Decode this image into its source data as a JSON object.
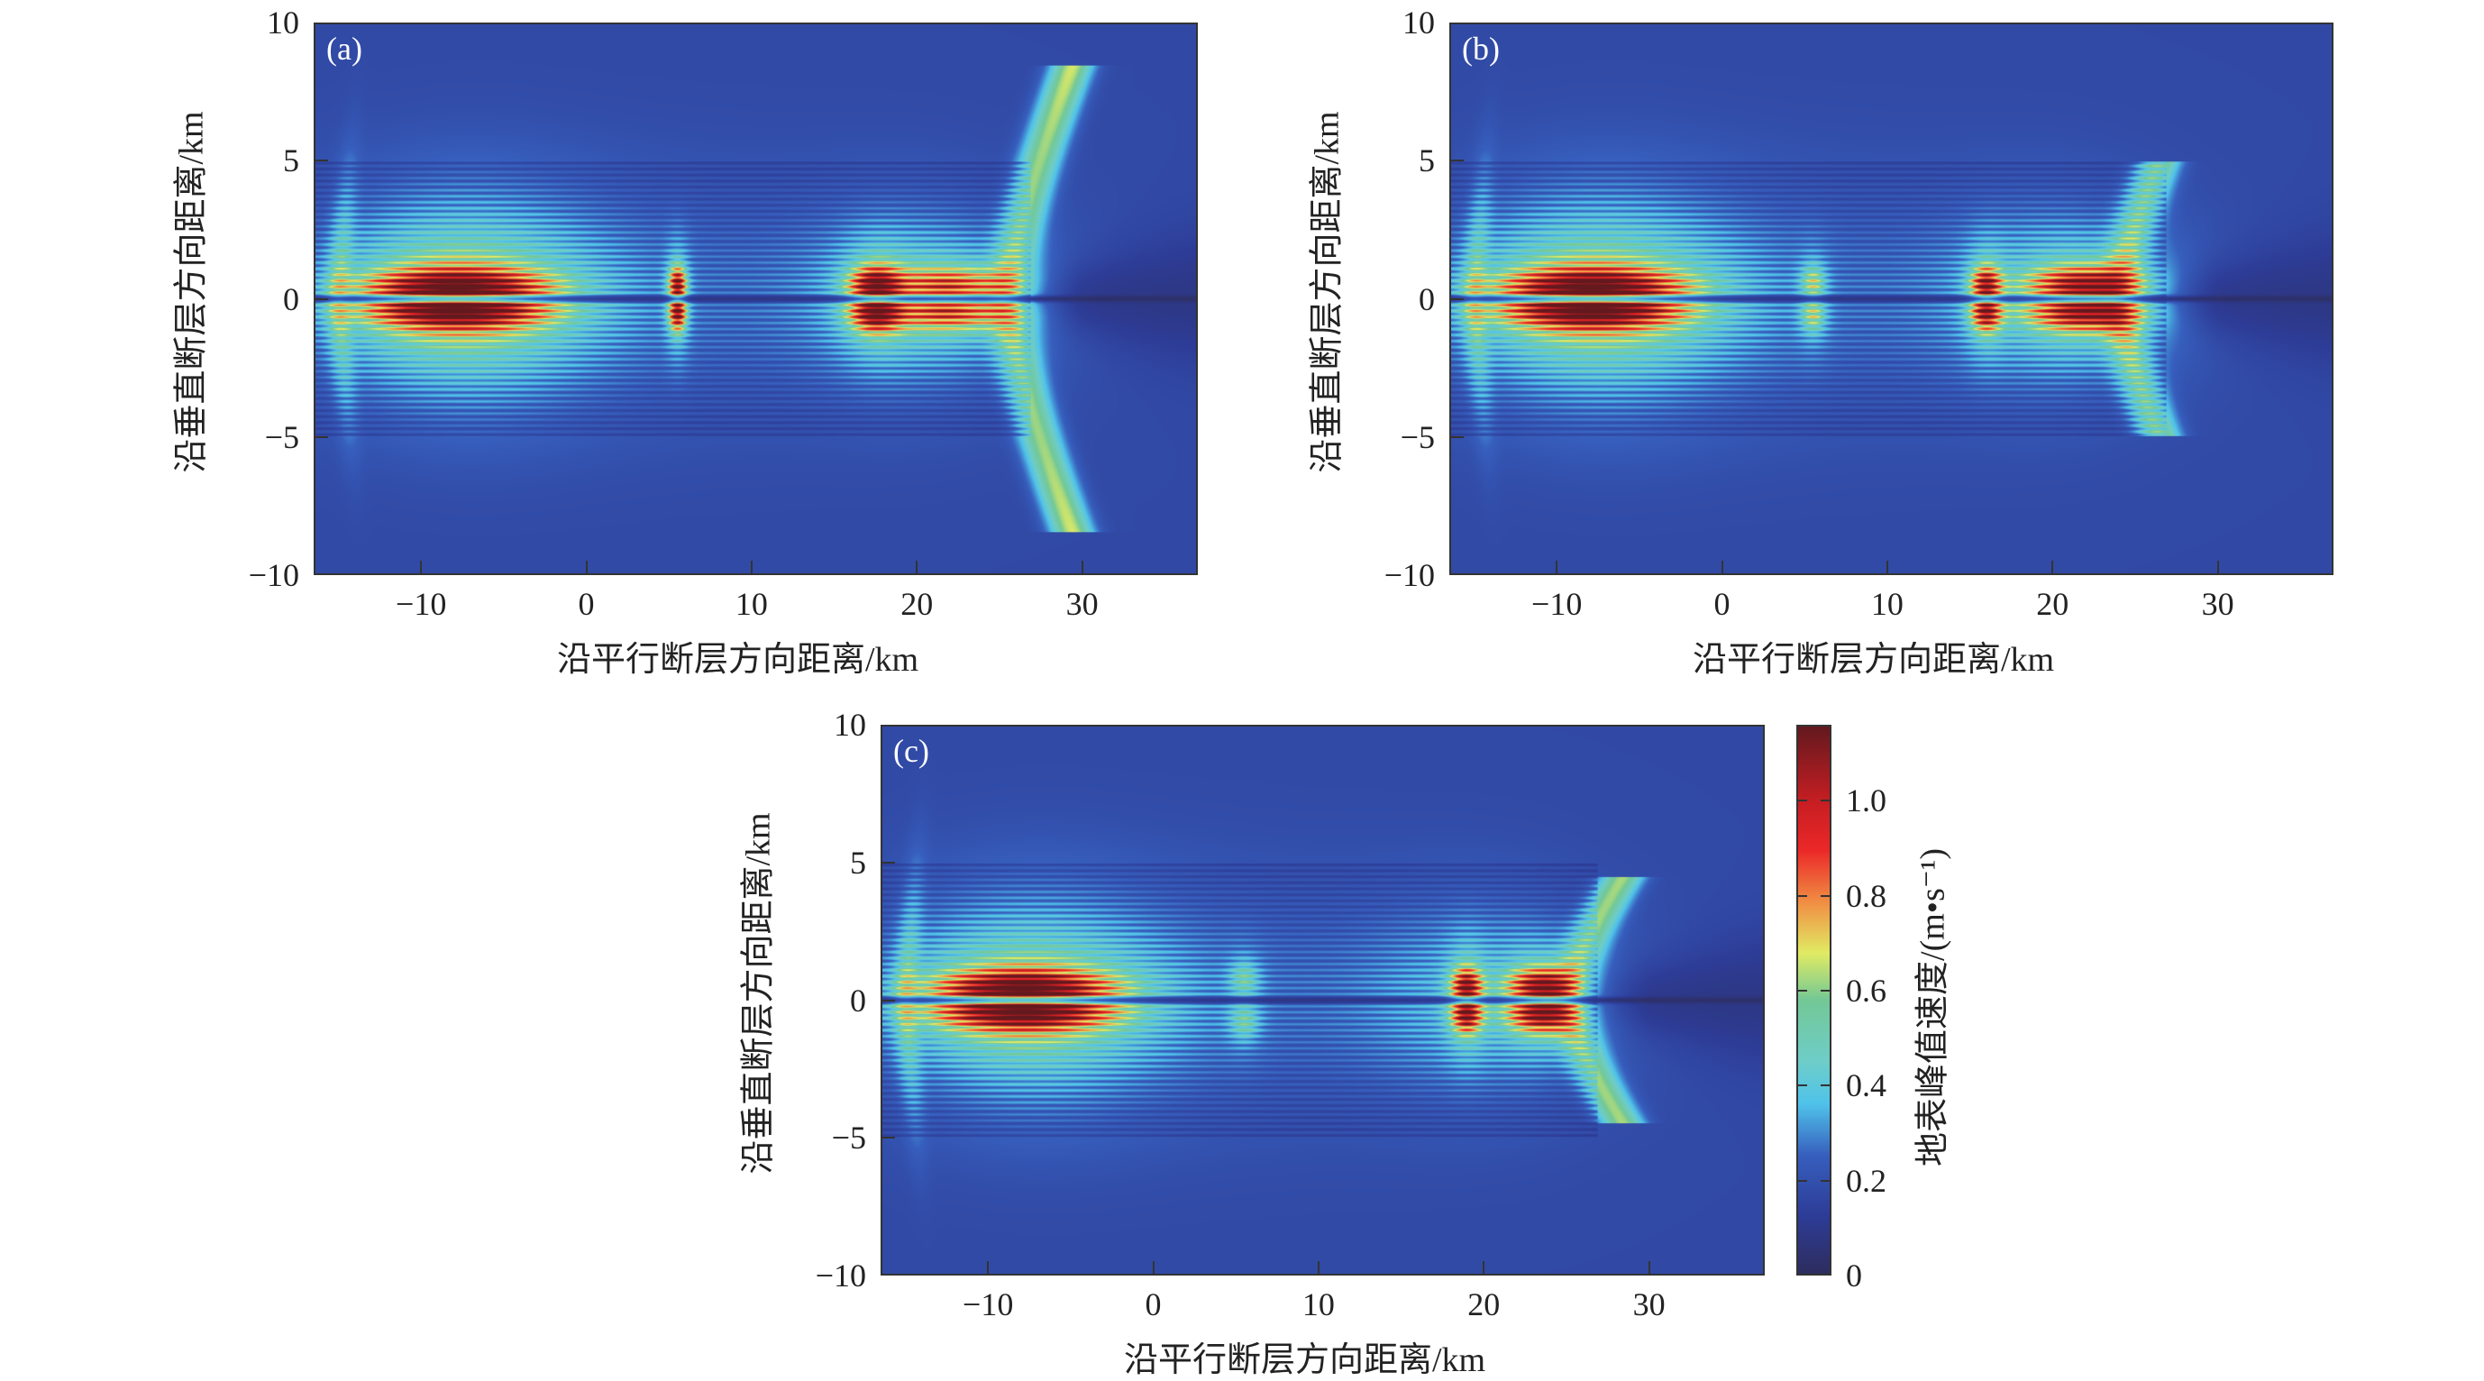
{
  "chart_data": [
    {
      "type": "heatmap",
      "panel_label": "(a)",
      "xlabel": "沿平行断层方向距离/km",
      "ylabel": "沿垂直断层方向距离/km",
      "xlim": [
        -16.5,
        37
      ],
      "ylim": [
        -10,
        10
      ],
      "xticks": [
        -10,
        0,
        10,
        20,
        30
      ],
      "yticks": [
        -10,
        -5,
        0,
        5,
        10
      ],
      "xtick_labels": [
        "−10",
        "0",
        "10",
        "20",
        "30"
      ],
      "ytick_labels": [
        "−10",
        "−5",
        "0",
        "5",
        "10"
      ],
      "features": {
        "near_fault_lobes": [
          {
            "x": -8,
            "y_offset": 0.4,
            "peak": 1.05,
            "sx": 3.5
          },
          {
            "x": 5.5,
            "y_offset": 0.5,
            "peak": 0.85,
            "sx": 0.35
          },
          {
            "x": 17.5,
            "y_offset": 0.5,
            "peak": 0.8,
            "sx": 1.0
          },
          {
            "x": 22,
            "y_offset": 0.5,
            "peak": 0.65,
            "sx": 2.5
          }
        ],
        "branches": [
          {
            "from": [
              25.5,
              0
            ],
            "to": [
              29.5,
              8.5
            ],
            "peak": 0.5
          }
        ],
        "halo_peak": 0.35
      }
    },
    {
      "type": "heatmap",
      "panel_label": "(b)",
      "xlabel": "沿平行断层方向距离/km",
      "ylabel": "沿垂直断层方向距离/km",
      "xlim": [
        -16.5,
        37
      ],
      "ylim": [
        -10,
        10
      ],
      "xticks": [
        -10,
        0,
        10,
        20,
        30
      ],
      "yticks": [
        -10,
        -5,
        0,
        5,
        10
      ],
      "xtick_labels": [
        "−10",
        "0",
        "10",
        "20",
        "30"
      ],
      "ytick_labels": [
        "−10",
        "−5",
        "0",
        "5",
        "10"
      ],
      "features": {
        "near_fault_lobes": [
          {
            "x": -8,
            "y_offset": 0.4,
            "peak": 1.05,
            "sx": 3.5
          },
          {
            "x": 5.5,
            "y_offset": 0.6,
            "peak": 0.35,
            "sx": 0.5
          },
          {
            "x": 16,
            "y_offset": 0.5,
            "peak": 0.75,
            "sx": 0.6
          },
          {
            "x": 22,
            "y_offset": 0.5,
            "peak": 0.9,
            "sx": 2.2
          }
        ],
        "branches": [
          {
            "from": [
              24,
              0
            ],
            "to": [
              26.5,
              5
            ],
            "peak": 0.45
          }
        ],
        "halo_peak": 0.35
      }
    },
    {
      "type": "heatmap",
      "panel_label": "(c)",
      "xlabel": "沿平行断层方向距离/km",
      "ylabel": "沿垂直断层方向距离/km",
      "xlim": [
        -16.5,
        37
      ],
      "ylim": [
        -10,
        10
      ],
      "xticks": [
        -10,
        0,
        10,
        20,
        30
      ],
      "yticks": [
        -10,
        -5,
        0,
        5,
        10
      ],
      "xtick_labels": [
        "−10",
        "0",
        "10",
        "20",
        "30"
      ],
      "ytick_labels": [
        "−10",
        "−5",
        "0",
        "5",
        "10"
      ],
      "features": {
        "near_fault_lobes": [
          {
            "x": -8,
            "y_offset": 0.4,
            "peak": 1.05,
            "sx": 3.5
          },
          {
            "x": 5.5,
            "y_offset": 0.8,
            "peak": 0.25,
            "sx": 0.6
          },
          {
            "x": 19,
            "y_offset": 0.5,
            "peak": 0.8,
            "sx": 0.6
          },
          {
            "x": 23.5,
            "y_offset": 0.5,
            "peak": 0.95,
            "sx": 1.3
          }
        ],
        "branches": [
          {
            "from": [
              25,
              0
            ],
            "to": [
              28.5,
              4.5
            ],
            "peak": 0.45
          }
        ],
        "halo_peak": 0.32
      }
    }
  ],
  "colorbar": {
    "label": "地表峰值速度/(m•s⁻¹)",
    "clim": [
      0,
      1.16
    ],
    "ticks": [
      0,
      0.2,
      0.4,
      0.6,
      0.8,
      1.0
    ],
    "tick_labels": [
      "0",
      "0.2",
      "0.4",
      "0.6",
      "0.8",
      "1.0"
    ]
  }
}
